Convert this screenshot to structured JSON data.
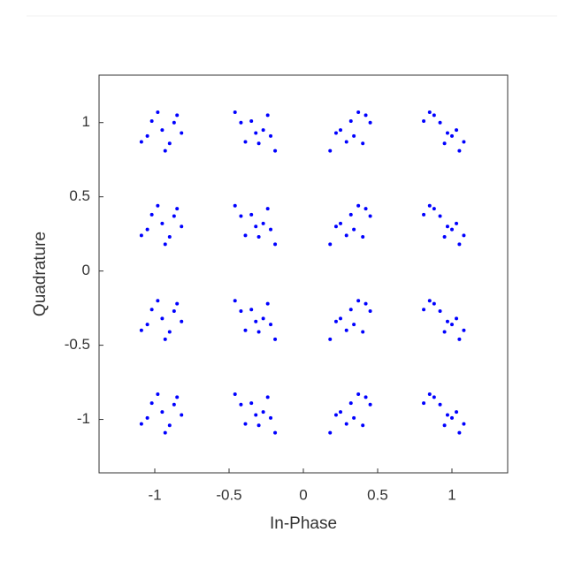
{
  "chart_data": {
    "type": "scatter",
    "xlabel": "In-Phase",
    "ylabel": "Quadrature",
    "xlim": [
      -1.375,
      1.375
    ],
    "ylim": [
      -1.36,
      1.32
    ],
    "xticks": [
      -1,
      -0.5,
      0,
      0.5,
      1
    ],
    "yticks": [
      -1,
      -0.5,
      0,
      0.5,
      1
    ],
    "series": [
      {
        "color": "#0000ff",
        "x": [
          -0.95,
          -0.87,
          -1.02,
          -0.9,
          -1.05,
          -0.82,
          -0.98,
          -0.93,
          -0.85,
          -1.09,
          -0.32,
          -0.24,
          -0.39,
          -0.27,
          -0.42,
          -0.19,
          -0.35,
          -0.3,
          -0.22,
          -0.46,
          0.32,
          0.4,
          0.25,
          0.37,
          0.22,
          0.45,
          0.29,
          0.34,
          0.42,
          0.18,
          0.95,
          1.03,
          0.88,
          1,
          0.85,
          1.08,
          0.92,
          0.97,
          1.05,
          0.81,
          -0.95,
          -0.87,
          -1.02,
          -0.9,
          -1.05,
          -0.82,
          -0.98,
          -0.93,
          -0.85,
          -1.09,
          -0.32,
          -0.24,
          -0.39,
          -0.27,
          -0.42,
          -0.19,
          -0.35,
          -0.3,
          -0.22,
          -0.46,
          0.32,
          0.4,
          0.25,
          0.37,
          0.22,
          0.45,
          0.29,
          0.34,
          0.42,
          0.18,
          0.95,
          1.03,
          0.88,
          1,
          0.85,
          1.08,
          0.92,
          0.97,
          1.05,
          0.81,
          -0.95,
          -0.87,
          -1.02,
          -0.9,
          -1.05,
          -0.82,
          -0.98,
          -0.93,
          -0.85,
          -1.09,
          -0.32,
          -0.24,
          -0.39,
          -0.27,
          -0.42,
          -0.19,
          -0.35,
          -0.3,
          -0.22,
          -0.46,
          0.32,
          0.4,
          0.25,
          0.37,
          0.22,
          0.45,
          0.29,
          0.34,
          0.42,
          0.18,
          0.95,
          1.03,
          0.88,
          1,
          0.85,
          1.08,
          0.92,
          0.97,
          1.05,
          0.81,
          -0.95,
          -0.87,
          -1.02,
          -0.9,
          -1.05,
          -0.82,
          -0.98,
          -0.93,
          -0.85,
          -1.09,
          -0.32,
          -0.24,
          -0.39,
          -0.27,
          -0.42,
          -0.19,
          -0.35,
          -0.3,
          -0.22,
          -0.46,
          0.32,
          0.4,
          0.25,
          0.37,
          0.22,
          0.45,
          0.29,
          0.34,
          0.42,
          0.18,
          0.95,
          1.03,
          0.88,
          1,
          0.85,
          1.08,
          0.92,
          0.97,
          1.05,
          0.81
        ],
        "values": [
          0.95,
          1,
          1.01,
          0.86,
          0.91,
          0.93,
          1.07,
          0.81,
          1.05,
          0.87,
          0.93,
          1.05,
          0.87,
          0.95,
          1,
          0.81,
          1.01,
          0.86,
          0.91,
          1.07,
          1.01,
          0.86,
          0.95,
          1.07,
          0.93,
          1,
          0.87,
          0.91,
          1.05,
          0.81,
          0.86,
          0.95,
          1.05,
          0.91,
          1.07,
          0.87,
          1,
          0.93,
          0.81,
          1.01,
          0.32,
          0.37,
          0.38,
          0.23,
          0.28,
          0.3,
          0.44,
          0.18,
          0.42,
          0.24,
          0.3,
          0.42,
          0.24,
          0.32,
          0.37,
          0.18,
          0.38,
          0.23,
          0.28,
          0.44,
          0.38,
          0.23,
          0.32,
          0.44,
          0.3,
          0.37,
          0.24,
          0.28,
          0.42,
          0.18,
          0.23,
          0.32,
          0.42,
          0.28,
          0.44,
          0.24,
          0.37,
          0.3,
          0.18,
          0.38,
          -0.32,
          -0.27,
          -0.26,
          -0.41,
          -0.36,
          -0.34,
          -0.2,
          -0.46,
          -0.22,
          -0.4,
          -0.34,
          -0.22,
          -0.4,
          -0.32,
          -0.27,
          -0.46,
          -0.26,
          -0.41,
          -0.36,
          -0.2,
          -0.26,
          -0.41,
          -0.32,
          -0.2,
          -0.34,
          -0.27,
          -0.4,
          -0.36,
          -0.22,
          -0.46,
          -0.41,
          -0.32,
          -0.22,
          -0.36,
          -0.2,
          -0.4,
          -0.27,
          -0.34,
          -0.46,
          -0.26,
          -0.95,
          -0.9,
          -0.89,
          -1.04,
          -0.99,
          -0.97,
          -0.83,
          -1.09,
          -0.85,
          -1.03,
          -0.97,
          -0.85,
          -1.03,
          -0.95,
          -0.9,
          -1.09,
          -0.89,
          -1.04,
          -0.99,
          -0.83,
          -0.89,
          -1.04,
          -0.95,
          -0.83,
          -0.97,
          -0.9,
          -1.03,
          -0.99,
          -0.85,
          -1.09,
          -1.04,
          -0.95,
          -0.85,
          -0.99,
          -0.83,
          -1.03,
          -0.9,
          -0.97,
          -1.09,
          -0.89
        ]
      }
    ]
  }
}
